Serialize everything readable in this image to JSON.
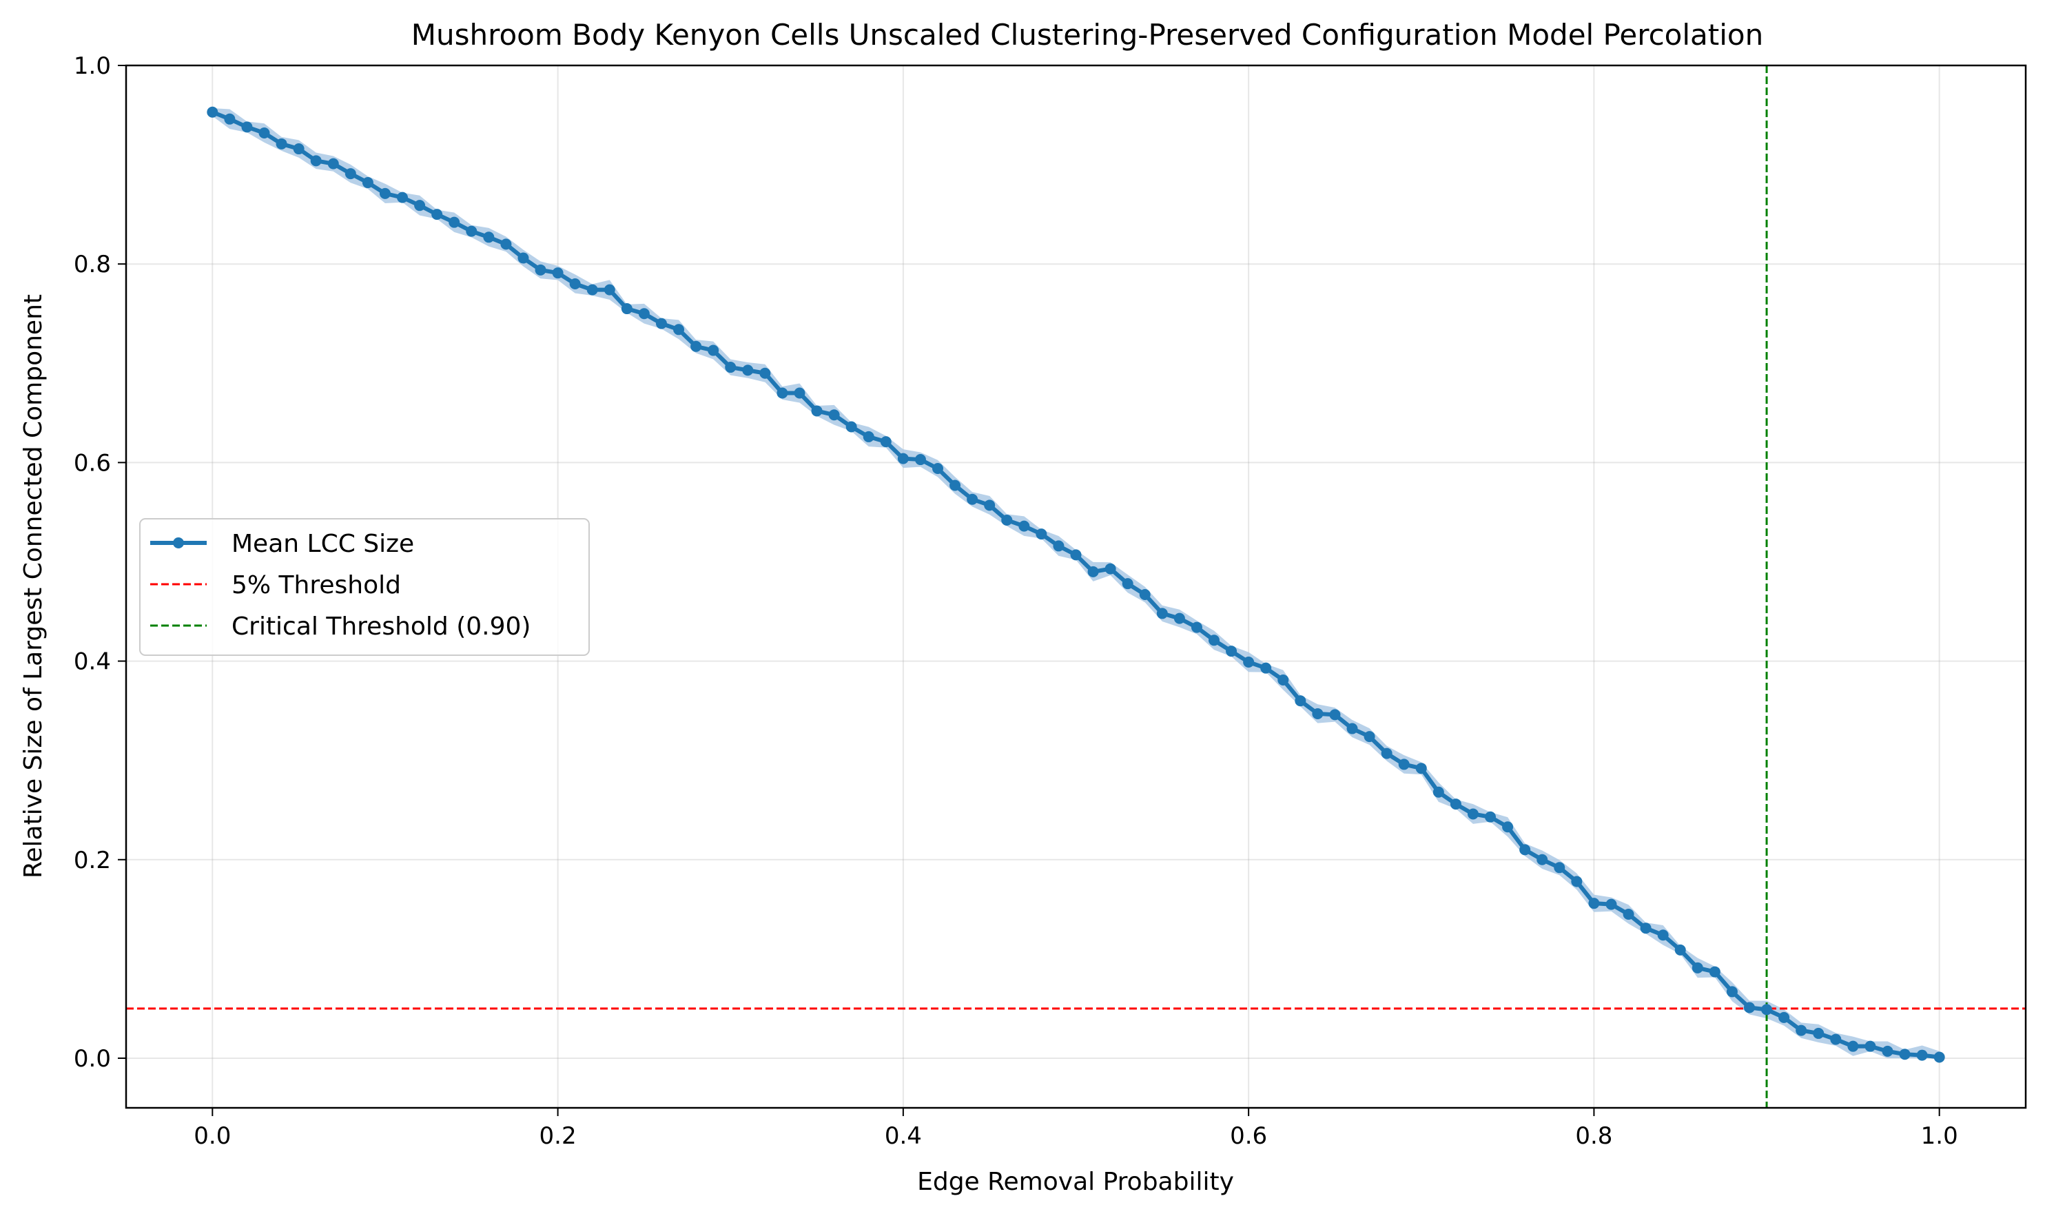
{
  "chart_data": {
    "type": "line",
    "title": "Mushroom Body Kenyon Cells Unscaled Clustering-Preserved Configuration Model Percolation",
    "xlabel": "Edge Removal Probability",
    "ylabel": "Relative Size of Largest Connected Component",
    "xlim": [
      -0.05,
      1.05
    ],
    "ylim": [
      -0.05,
      1.0
    ],
    "xticks": [
      0.0,
      0.2,
      0.4,
      0.6,
      0.8,
      1.0
    ],
    "xtick_labels": [
      "0.0",
      "0.2",
      "0.4",
      "0.6",
      "0.8",
      "1.0"
    ],
    "yticks": [
      0.0,
      0.2,
      0.4,
      0.6,
      0.8,
      1.0
    ],
    "ytick_labels": [
      "0.0",
      "0.2",
      "0.4",
      "0.6",
      "0.8",
      "1.0"
    ],
    "grid": true,
    "legend_position": "center-left",
    "series": [
      {
        "name": "Mean LCC Size",
        "color": "#1f77b4",
        "band_color": "#a6c6e4",
        "x": [
          0.0,
          0.01,
          0.02,
          0.03,
          0.04,
          0.05,
          0.06,
          0.07,
          0.08,
          0.09,
          0.1,
          0.11,
          0.12,
          0.13,
          0.14,
          0.15,
          0.16,
          0.17,
          0.18,
          0.19,
          0.2,
          0.21,
          0.22,
          0.23,
          0.24,
          0.25,
          0.26,
          0.27,
          0.28,
          0.29,
          0.3,
          0.31,
          0.32,
          0.33,
          0.34,
          0.35,
          0.36,
          0.37,
          0.38,
          0.39,
          0.4,
          0.41,
          0.42,
          0.43,
          0.44,
          0.45,
          0.46,
          0.47,
          0.48,
          0.49,
          0.5,
          0.51,
          0.52,
          0.53,
          0.54,
          0.55,
          0.56,
          0.57,
          0.58,
          0.59,
          0.6,
          0.61,
          0.62,
          0.63,
          0.64,
          0.65,
          0.66,
          0.67,
          0.68,
          0.69,
          0.7,
          0.71,
          0.72,
          0.73,
          0.74,
          0.75,
          0.76,
          0.77,
          0.78,
          0.79,
          0.8,
          0.81,
          0.82,
          0.83,
          0.84,
          0.85,
          0.86,
          0.87,
          0.88,
          0.89,
          0.9,
          0.91,
          0.92,
          0.93,
          0.94,
          0.95,
          0.96,
          0.97,
          0.98,
          0.99,
          1.0
        ],
        "y": [
          0.953,
          0.946,
          0.938,
          0.932,
          0.921,
          0.916,
          0.904,
          0.901,
          0.891,
          0.882,
          0.871,
          0.867,
          0.859,
          0.85,
          0.842,
          0.833,
          0.827,
          0.82,
          0.806,
          0.794,
          0.791,
          0.78,
          0.774,
          0.774,
          0.755,
          0.75,
          0.74,
          0.734,
          0.717,
          0.713,
          0.696,
          0.693,
          0.69,
          0.67,
          0.67,
          0.652,
          0.648,
          0.636,
          0.626,
          0.621,
          0.604,
          0.603,
          0.594,
          0.577,
          0.563,
          0.557,
          0.542,
          0.536,
          0.528,
          0.516,
          0.507,
          0.49,
          0.493,
          0.478,
          0.467,
          0.448,
          0.443,
          0.434,
          0.421,
          0.41,
          0.399,
          0.393,
          0.381,
          0.36,
          0.347,
          0.346,
          0.332,
          0.324,
          0.307,
          0.296,
          0.292,
          0.268,
          0.256,
          0.246,
          0.243,
          0.233,
          0.21,
          0.2,
          0.192,
          0.178,
          0.156,
          0.155,
          0.145,
          0.131,
          0.124,
          0.109,
          0.091,
          0.087,
          0.067,
          0.051,
          0.049,
          0.041,
          0.028,
          0.025,
          0.019,
          0.012,
          0.012,
          0.007,
          0.004,
          0.003,
          0.001
        ]
      }
    ],
    "reference_lines": [
      {
        "name": "5% Threshold",
        "orientation": "horizontal",
        "value": 0.05,
        "color": "#ff0000",
        "style": "dashed"
      },
      {
        "name": "Critical Threshold (0.90)",
        "orientation": "vertical",
        "value": 0.9,
        "color": "#008000",
        "style": "dashed"
      }
    ]
  }
}
